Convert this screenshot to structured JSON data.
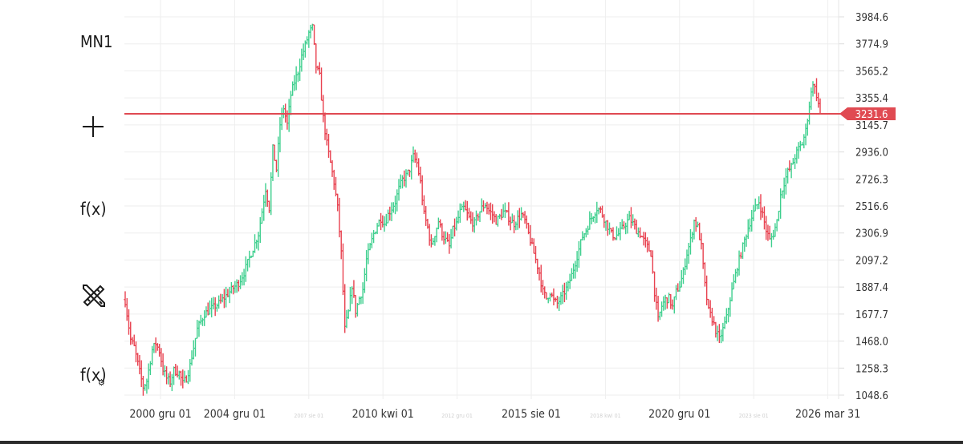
{
  "toolbar": {
    "timeframe": "MN1",
    "crosshair_icon": "crosshair-icon",
    "indicators_label": "f(x)",
    "draw_tools_icon": "pencil-ruler-icon",
    "indicator_settings_label": "f(x)"
  },
  "colors": {
    "up": "#3ecf8e",
    "down": "#e8414f",
    "price_line": "#e04a52",
    "grid": "#eeeeee",
    "axis_text": "#333333"
  },
  "chart_data": {
    "type": "ohlc",
    "timeframe": "MN1",
    "current_price": 3231.6,
    "current_price_label": "3231.6",
    "y_ticks": [
      "3984.6",
      "3774.9",
      "3565.2",
      "3355.4",
      "3145.7",
      "2936.0",
      "2726.3",
      "2516.6",
      "2306.9",
      "2097.2",
      "1887.4",
      "1677.7",
      "1468.0",
      "1258.3",
      "1048.6"
    ],
    "y_range": [
      1000,
      4000
    ],
    "x_labels": [
      {
        "text": "2000 gru 01",
        "major": true
      },
      {
        "text": "2004 gru 01",
        "major": true
      },
      {
        "text": "2007 sie 01",
        "major": false
      },
      {
        "text": "2010 kwi 01",
        "major": true
      },
      {
        "text": "2012 gru 01",
        "major": false
      },
      {
        "text": "2015 sie 01",
        "major": true
      },
      {
        "text": "2018 kwi 01",
        "major": false
      },
      {
        "text": "2020 gru 01",
        "major": true
      },
      {
        "text": "2023 sie 01",
        "major": false
      },
      {
        "text": "2026 mar 31",
        "major": true
      }
    ],
    "approx_path": [
      [
        0,
        1780
      ],
      [
        3,
        1480
      ],
      [
        5,
        1420
      ],
      [
        8,
        1230
      ],
      [
        10,
        1110
      ],
      [
        12,
        1160
      ],
      [
        15,
        1400
      ],
      [
        17,
        1450
      ],
      [
        19,
        1390
      ],
      [
        21,
        1250
      ],
      [
        23,
        1180
      ],
      [
        25,
        1150
      ],
      [
        27,
        1240
      ],
      [
        30,
        1220
      ],
      [
        32,
        1140
      ],
      [
        34,
        1180
      ],
      [
        36,
        1280
      ],
      [
        40,
        1560
      ],
      [
        44,
        1680
      ],
      [
        48,
        1720
      ],
      [
        52,
        1760
      ],
      [
        56,
        1820
      ],
      [
        60,
        1880
      ],
      [
        63,
        1920
      ],
      [
        66,
        2000
      ],
      [
        70,
        2150
      ],
      [
        74,
        2300
      ],
      [
        78,
        2650
      ],
      [
        80,
        2500
      ],
      [
        82,
        2960
      ],
      [
        84,
        2800
      ],
      [
        86,
        3150
      ],
      [
        88,
        3280
      ],
      [
        90,
        3150
      ],
      [
        92,
        3380
      ],
      [
        94,
        3480
      ],
      [
        96,
        3560
      ],
      [
        98,
        3680
      ],
      [
        100,
        3760
      ],
      [
        102,
        3860
      ],
      [
        104,
        3900
      ],
      [
        106,
        3600
      ],
      [
        108,
        3520
      ],
      [
        110,
        3200
      ],
      [
        112,
        3000
      ],
      [
        114,
        2850
      ],
      [
        116,
        2700
      ],
      [
        118,
        2500
      ],
      [
        120,
        2150
      ],
      [
        122,
        1560
      ],
      [
        124,
        1690
      ],
      [
        126,
        1900
      ],
      [
        128,
        1700
      ],
      [
        130,
        1800
      ],
      [
        132,
        1870
      ],
      [
        134,
        2100
      ],
      [
        136,
        2200
      ],
      [
        138,
        2300
      ],
      [
        140,
        2370
      ],
      [
        142,
        2420
      ],
      [
        144,
        2380
      ],
      [
        146,
        2450
      ],
      [
        148,
        2500
      ],
      [
        150,
        2550
      ],
      [
        152,
        2650
      ],
      [
        154,
        2720
      ],
      [
        156,
        2750
      ],
      [
        158,
        2800
      ],
      [
        160,
        2900
      ],
      [
        162,
        2850
      ],
      [
        164,
        2700
      ],
      [
        166,
        2450
      ],
      [
        168,
        2350
      ],
      [
        170,
        2200
      ],
      [
        172,
        2300
      ],
      [
        174,
        2400
      ],
      [
        176,
        2300
      ],
      [
        178,
        2250
      ],
      [
        180,
        2200
      ],
      [
        182,
        2330
      ],
      [
        184,
        2380
      ],
      [
        186,
        2470
      ],
      [
        188,
        2500
      ],
      [
        190,
        2450
      ],
      [
        192,
        2400
      ],
      [
        194,
        2380
      ],
      [
        196,
        2450
      ],
      [
        198,
        2500
      ],
      [
        200,
        2530
      ],
      [
        202,
        2480
      ],
      [
        204,
        2450
      ],
      [
        206,
        2400
      ],
      [
        208,
        2430
      ],
      [
        210,
        2470
      ],
      [
        212,
        2450
      ],
      [
        214,
        2400
      ],
      [
        216,
        2380
      ],
      [
        218,
        2420
      ],
      [
        220,
        2450
      ],
      [
        222,
        2400
      ],
      [
        224,
        2300
      ],
      [
        226,
        2200
      ],
      [
        228,
        2100
      ],
      [
        230,
        2000
      ],
      [
        232,
        1850
      ],
      [
        234,
        1800
      ],
      [
        236,
        1850
      ],
      [
        238,
        1780
      ],
      [
        240,
        1760
      ],
      [
        242,
        1800
      ],
      [
        244,
        1850
      ],
      [
        246,
        1900
      ],
      [
        248,
        1980
      ],
      [
        250,
        2080
      ],
      [
        252,
        2180
      ],
      [
        254,
        2280
      ],
      [
        256,
        2330
      ],
      [
        258,
        2400
      ],
      [
        260,
        2450
      ],
      [
        262,
        2500
      ],
      [
        264,
        2480
      ],
      [
        266,
        2420
      ],
      [
        268,
        2360
      ],
      [
        270,
        2300
      ],
      [
        272,
        2280
      ],
      [
        274,
        2300
      ],
      [
        276,
        2340
      ],
      [
        278,
        2380
      ],
      [
        280,
        2420
      ],
      [
        282,
        2380
      ],
      [
        284,
        2330
      ],
      [
        286,
        2300
      ],
      [
        288,
        2250
      ],
      [
        290,
        2200
      ],
      [
        292,
        2150
      ],
      [
        294,
        1850
      ],
      [
        296,
        1630
      ],
      [
        298,
        1740
      ],
      [
        300,
        1790
      ],
      [
        302,
        1800
      ],
      [
        304,
        1730
      ],
      [
        306,
        1850
      ],
      [
        308,
        1900
      ],
      [
        310,
        2000
      ],
      [
        312,
        2150
      ],
      [
        314,
        2250
      ],
      [
        316,
        2400
      ],
      [
        318,
        2350
      ],
      [
        320,
        2200
      ],
      [
        322,
        1900
      ],
      [
        324,
        1700
      ],
      [
        326,
        1640
      ],
      [
        328,
        1550
      ],
      [
        330,
        1480
      ],
      [
        332,
        1560
      ],
      [
        334,
        1650
      ],
      [
        336,
        1800
      ],
      [
        338,
        1920
      ],
      [
        340,
        2050
      ],
      [
        342,
        2150
      ],
      [
        344,
        2250
      ],
      [
        346,
        2350
      ],
      [
        348,
        2430
      ],
      [
        350,
        2500
      ],
      [
        352,
        2550
      ],
      [
        354,
        2450
      ],
      [
        356,
        2330
      ],
      [
        358,
        2250
      ],
      [
        360,
        2300
      ],
      [
        362,
        2400
      ],
      [
        364,
        2600
      ],
      [
        366,
        2700
      ],
      [
        368,
        2780
      ],
      [
        370,
        2820
      ],
      [
        372,
        2900
      ],
      [
        374,
        2960
      ],
      [
        376,
        3000
      ],
      [
        378,
        3100
      ],
      [
        380,
        3300
      ],
      [
        382,
        3480
      ],
      [
        384,
        3380
      ],
      [
        386,
        3231.6
      ]
    ]
  }
}
